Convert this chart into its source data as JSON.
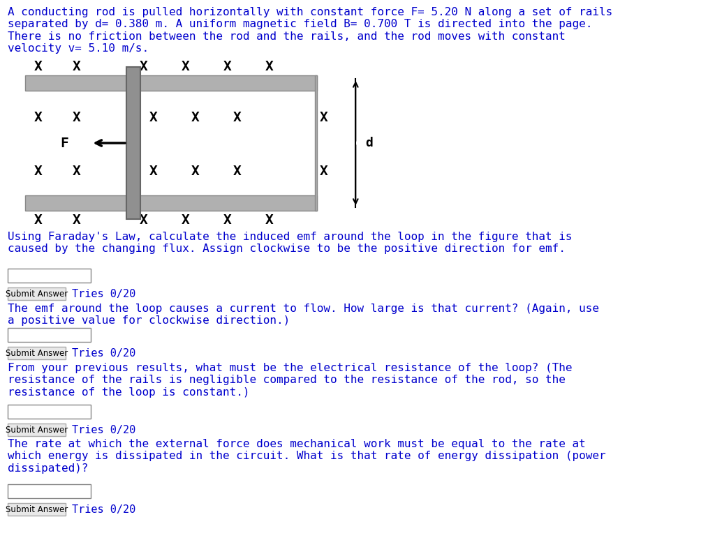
{
  "bg_color": "#ffffff",
  "text_color": "#0000CD",
  "black": "#000000",
  "gray_rail": "#b0b0b0",
  "gray_rod": "#909090",
  "problem_text": "A conducting rod is pulled horizontally with constant force F= 5.20 N along a set of rails\nseparated by d= 0.380 m. A uniform magnetic field B= 0.700 T is directed into the page.\nThere is no friction between the rod and the rails, and the rod moves with constant\nvelocity v= 5.10 m/s.",
  "q1_text": "Using Faraday's Law, calculate the induced emf around the loop in the figure that is\ncaused by the changing flux. Assign clockwise to be the positive direction for emf.",
  "q2_text": "The emf around the loop causes a current to flow. How large is that current? (Again, use\na positive value for clockwise direction.)",
  "q3_text": "From your previous results, what must be the electrical resistance of the loop? (The\nresistance of the rails is negligible compared to the resistance of the rod, so the\nresistance of the loop is constant.)",
  "q4_text": "The rate at which the external force does mechanical work must be equal to the rate at\nwhich energy is dissipated in the circuit. What is that rate of energy dissipation (power\ndissipated)?",
  "submit_text": "Submit Answer",
  "tries_text": "Tries 0/20"
}
